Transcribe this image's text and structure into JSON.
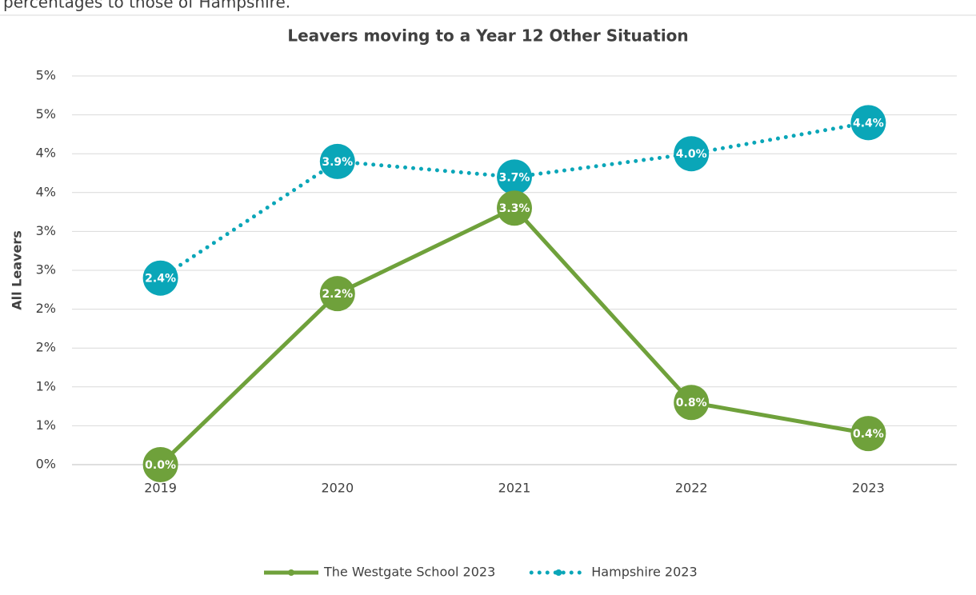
{
  "intro": "percentages to those of Hampshire.",
  "chart_data": {
    "type": "line",
    "title": "Leavers moving to a Year 12 Other Situation",
    "y_label": "All Leavers",
    "categories": [
      "2019",
      "2020",
      "2021",
      "2022",
      "2023"
    ],
    "series": [
      {
        "name": "The Westgate School 2023",
        "color": "#6fa13b",
        "style": "solid",
        "values": [
          0.0,
          2.2,
          3.3,
          0.8,
          0.4
        ],
        "value_labels": [
          "0.0%",
          "2.2%",
          "3.3%",
          "0.8%",
          "0.4%"
        ]
      },
      {
        "name": "Hampshire 2023",
        "color": "#0aa6b8",
        "style": "dotted",
        "values": [
          2.4,
          3.9,
          3.7,
          4.0,
          4.4
        ],
        "value_labels": [
          "2.4%",
          "3.9%",
          "3.7%",
          "4.0%",
          "4.4%"
        ]
      }
    ],
    "ylim": [
      0,
      5
    ],
    "yticks": [
      {
        "value": 0,
        "label": "0%"
      },
      {
        "value": 0.5,
        "label": "1%"
      },
      {
        "value": 1,
        "label": "1%"
      },
      {
        "value": 1.5,
        "label": "2%"
      },
      {
        "value": 2,
        "label": "2%"
      },
      {
        "value": 2.5,
        "label": "3%"
      },
      {
        "value": 3,
        "label": "3%"
      },
      {
        "value": 3.5,
        "label": "4%"
      },
      {
        "value": 4,
        "label": "4%"
      },
      {
        "value": 4.5,
        "label": "5%"
      },
      {
        "value": 5,
        "label": "5%"
      }
    ],
    "grid": true,
    "legend": "bottom"
  }
}
